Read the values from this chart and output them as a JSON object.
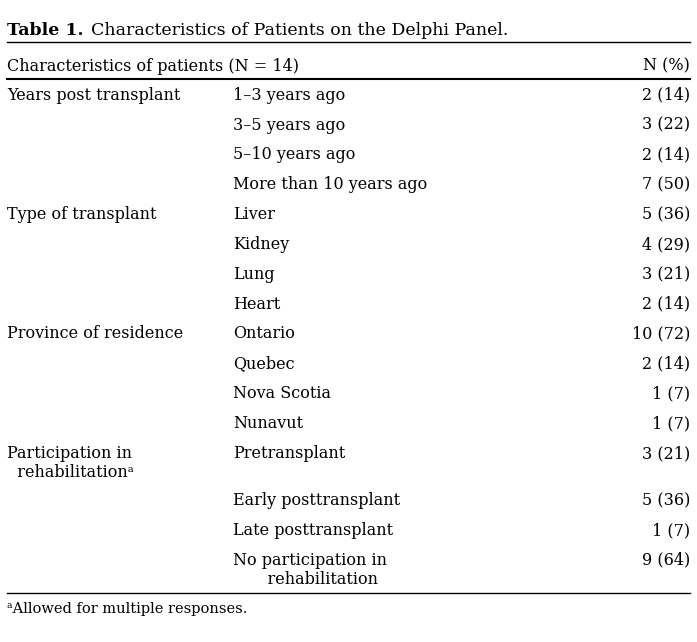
{
  "title_bold": "Table 1.",
  "title_regular": "  Characteristics of Patients on the Delphi Panel.",
  "header_left": "Characteristics of patients (N = 14)",
  "header_right": "N (%)",
  "rows": [
    {
      "col1": "Years post transplant",
      "col2": "1–3 years ago",
      "col3": "2 (14)",
      "cat_row": true
    },
    {
      "col1": "",
      "col2": "3–5 years ago",
      "col3": "3 (22)",
      "cat_row": false
    },
    {
      "col1": "",
      "col2": "5–10 years ago",
      "col3": "2 (14)",
      "cat_row": false
    },
    {
      "col1": "",
      "col2": "More than 10 years ago",
      "col3": "7 (50)",
      "cat_row": false
    },
    {
      "col1": "Type of transplant",
      "col2": "Liver",
      "col3": "5 (36)",
      "cat_row": true
    },
    {
      "col1": "",
      "col2": "Kidney",
      "col3": "4 (29)",
      "cat_row": false
    },
    {
      "col1": "",
      "col2": "Lung",
      "col3": "3 (21)",
      "cat_row": false
    },
    {
      "col1": "",
      "col2": "Heart",
      "col3": "2 (14)",
      "cat_row": false
    },
    {
      "col1": "Province of residence",
      "col2": "Ontario",
      "col3": "10 (72)",
      "cat_row": true
    },
    {
      "col1": "",
      "col2": "Quebec",
      "col3": "2 (14)",
      "cat_row": false
    },
    {
      "col1": "",
      "col2": "Nova Scotia",
      "col3": "1 (7)",
      "cat_row": false
    },
    {
      "col1": "",
      "col2": "Nunavut",
      "col3": "1 (7)",
      "cat_row": false
    },
    {
      "col1": "Participation in\n  rehabilitationᵃ",
      "col2": "Pretransplant",
      "col3": "3 (21)",
      "cat_row": true
    },
    {
      "col1": "",
      "col2": "Early posttransplant",
      "col3": "5 (36)",
      "cat_row": false
    },
    {
      "col1": "",
      "col2": "Late posttransplant",
      "col3": "1 (7)",
      "cat_row": false
    },
    {
      "col1": "",
      "col2": "No participation in\n    rehabilitation",
      "col3": "9 (64)",
      "cat_row": false
    }
  ],
  "footnote": "ᵃAllowed for multiple responses.",
  "bg_color": "#ffffff",
  "text_color": "#000000",
  "font_size": 11.5,
  "title_font_size": 12.5
}
